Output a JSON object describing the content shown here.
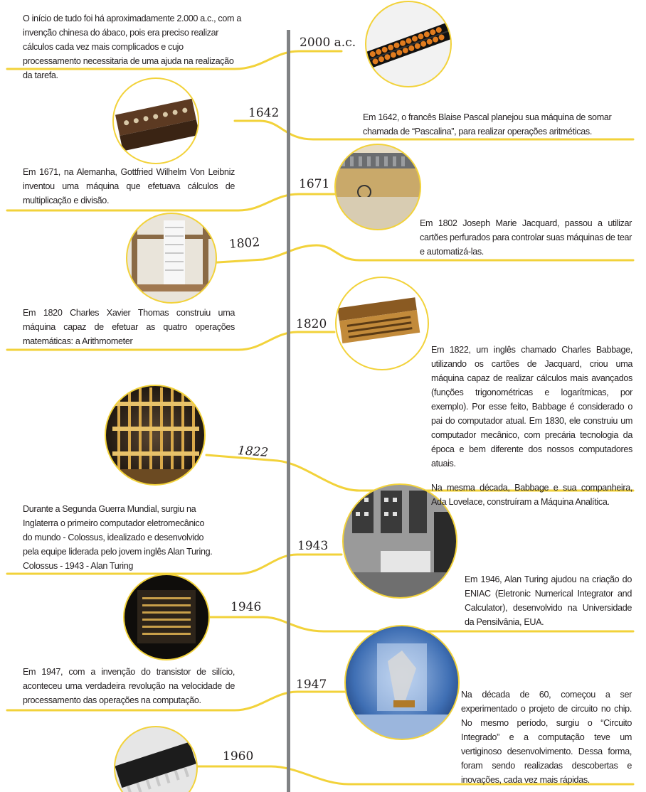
{
  "colors": {
    "axis": "#808284",
    "connector": "#f2d23a",
    "ring": "#f2d23a",
    "text": "#231f20"
  },
  "events": [
    {
      "year": "2000 a.c.",
      "text": "O início de tudo foi há aproximadamente 2.000 a.c., com a invenção chinesa do ábaco, pois era preciso realizar cálculos cada vez mais complicados e cujo processamento necessitaria de uma ajuda na realização da tarefa.",
      "image": "abacus"
    },
    {
      "year": "1642",
      "text": "Em 1642, o francês Blaise Pascal planejou sua máquina de somar chamada de “Pascalina”, para realizar operações aritméticas.",
      "image": "pascaline"
    },
    {
      "year": "1671",
      "text": "Em 1671, na Alemanha, Gottfried Wilhelm Von Leibniz inventou uma máquina que efetuava cálculos de multiplicação e divisão.",
      "image": "leibniz-calculator"
    },
    {
      "year": "1802",
      "text": "Em 1802 Joseph Marie Jacquard, passou a utilizar cartões perfurados para controlar suas máquinas de tear e automatizá-las.",
      "image": "jacquard-loom"
    },
    {
      "year": "1820",
      "text": "Em 1820 Charles Xavier Thomas construiu uma máquina capaz de efetuar as quatro operações matemáticas: a Arithmometer",
      "image": "arithmometer"
    },
    {
      "year": "1822",
      "text": "Em 1822, um inglês chamado Charles Babbage, utilizando os cartões de Jacquard, criou uma máquina capaz de realizar cálculos mais avançados (funções trigonométricas e  logarítmicas, por exemplo). Por esse feito, Babbage é considerado o pai do computador atual. Em 1830, ele construiu um computador mecânico, com precária tecnologia da época e bem diferente dos nossos computadores atuais.",
      "text2": "Na mesma década, Babbage e sua companheira, Ada Lovelace, construíram a Máquina Analítica.",
      "image": "difference-engine"
    },
    {
      "year": "1943",
      "text": "Durante a Segunda Guerra Mundial, surgiu na Inglaterra o primeiro computador eletromecânico do mundo - Colossus, idealizado e desenvolvido pela equipe liderada pelo jovem inglês Alan Turing. Colossus - 1943 - Alan Turing",
      "image": "colossus"
    },
    {
      "year": "1946",
      "text": "Em 1946, Alan Turing ajudou na criação do ENIAC (Eletronic Numerical Integrator and Calculator), desenvolvido na Universidade da Pensilvânia, EUA.",
      "image": "eniac-panel"
    },
    {
      "year": "1947",
      "text": "Em 1947, com a invenção do transistor de silício, aconteceu uma verdadeira revolução na velocidade de processamento das operações na computação.",
      "image": "first-transistor"
    },
    {
      "year": "1960",
      "text": "Na década de 60, começou a ser experimentado o projeto de circuito no chip. No mesmo período, surgiu o “Circuito Integrado” e a computação teve um vertiginoso desenvolvimento. Dessa forma, foram sendo realizadas descobertas e inovações, cada vez mais rápidas.",
      "image": "integrated-circuit-chip"
    }
  ]
}
